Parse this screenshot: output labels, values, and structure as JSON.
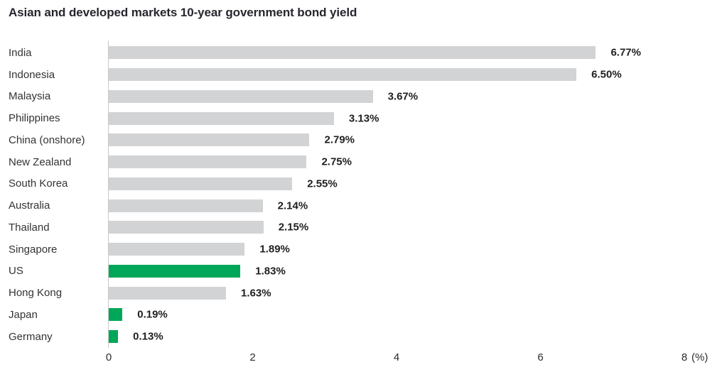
{
  "chart_data": {
    "type": "bar",
    "orientation": "horizontal",
    "title": "Asian and developed markets 10-year government bond yield",
    "xlabel": "",
    "ylabel": "",
    "xlim": [
      0,
      8
    ],
    "xticks": [
      "0",
      "2",
      "4",
      "6",
      "8"
    ],
    "axis_unit": "(%)",
    "grid": false,
    "legend_position": "none",
    "bar_color_default": "#d2d3d4",
    "bar_color_highlight": "#00a758",
    "categories": [
      "India",
      "Indonesia",
      "Malaysia",
      "Philippines",
      "China (onshore)",
      "New Zealand",
      "South Korea",
      "Australia",
      "Thailand",
      "Singapore",
      "US",
      "Hong Kong",
      "Japan",
      "Germany"
    ],
    "values": [
      6.77,
      6.5,
      3.67,
      3.13,
      2.79,
      2.75,
      2.55,
      2.14,
      2.15,
      1.89,
      1.83,
      1.63,
      0.19,
      0.13
    ],
    "value_labels": [
      "6.77%",
      "6.50%",
      "3.67%",
      "3.13%",
      "2.79%",
      "2.75%",
      "2.55%",
      "2.14%",
      "2.15%",
      "1.89%",
      "1.83%",
      "1.63%",
      "0.19%",
      "0.13%"
    ],
    "highlighted_categories": [
      "US",
      "Japan",
      "Germany"
    ]
  }
}
